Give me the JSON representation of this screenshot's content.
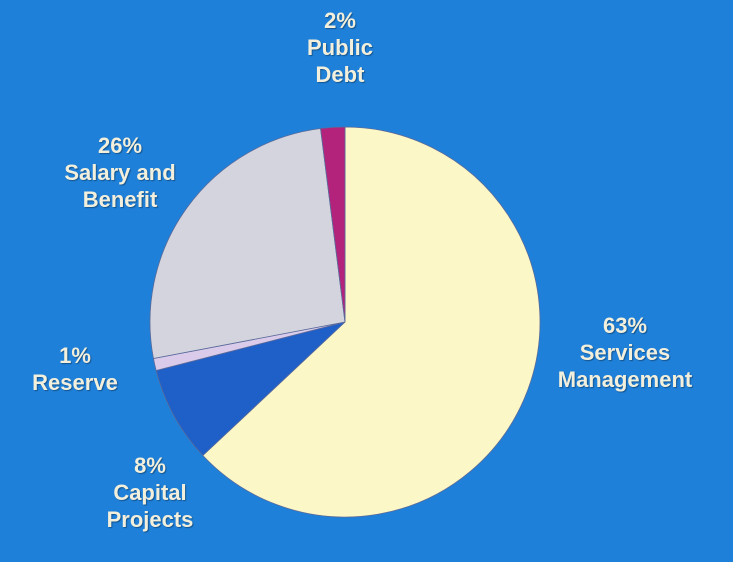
{
  "chart_data": {
    "type": "pie",
    "categories": [
      "Services Management",
      "Capital Projects",
      "Reserve",
      "Salary and Benefit",
      "Public Debt"
    ],
    "values": [
      63,
      8,
      1,
      26,
      2
    ],
    "value_labels": [
      "63%",
      "8%",
      "1%",
      "26%",
      "2%"
    ],
    "colors": [
      "#fbf7c6",
      "#1f5fc8",
      "#d9cbe9",
      "#d4d4de",
      "#b3237c"
    ]
  }
}
